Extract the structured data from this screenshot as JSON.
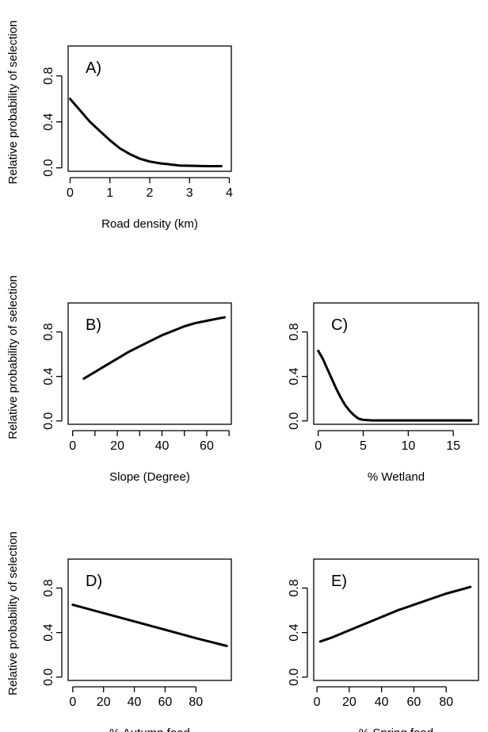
{
  "chart_data": [
    {
      "type": "line",
      "panel_label": "A)",
      "xlabel": "Road density (km)",
      "ylabel": "Relative probability of selection",
      "xlim": [
        -0.05,
        4.05
      ],
      "ylim": [
        -0.03,
        1.06
      ],
      "xticks": [
        0,
        1,
        2,
        3,
        4
      ],
      "yticks": [
        0.0,
        0.4,
        0.8
      ],
      "ytick_labels": [
        "0.0",
        "0.4",
        "0.8"
      ],
      "x": [
        0.0,
        0.25,
        0.5,
        0.75,
        1.0,
        1.25,
        1.5,
        1.75,
        2.0,
        2.25,
        2.5,
        2.75,
        3.0,
        3.25,
        3.5,
        3.8
      ],
      "y": [
        0.6,
        0.5,
        0.4,
        0.32,
        0.24,
        0.17,
        0.12,
        0.08,
        0.055,
        0.04,
        0.03,
        0.02,
        0.018,
        0.016,
        0.015,
        0.015
      ]
    },
    {
      "type": "line",
      "panel_label": "B)",
      "xlabel": "Slope (Degree)",
      "ylabel": "Relative probability of selection",
      "xlim": [
        -2,
        71
      ],
      "ylim": [
        -0.03,
        1.06
      ],
      "xticks": [
        0,
        10,
        20,
        30,
        40,
        50,
        60,
        70
      ],
      "xtick_labels": [
        "0",
        "",
        "20",
        "",
        "40",
        "",
        "60",
        ""
      ],
      "yticks": [
        0.0,
        0.4,
        0.8
      ],
      "ytick_labels": [
        "0.0",
        "0.4",
        "0.8"
      ],
      "x": [
        5,
        10,
        15,
        20,
        25,
        30,
        35,
        40,
        45,
        50,
        55,
        60,
        65,
        68
      ],
      "y": [
        0.38,
        0.44,
        0.5,
        0.56,
        0.62,
        0.67,
        0.72,
        0.77,
        0.81,
        0.85,
        0.88,
        0.9,
        0.92,
        0.93
      ]
    },
    {
      "type": "line",
      "panel_label": "C)",
      "xlabel": "% Wetland",
      "ylabel": "",
      "xlim": [
        -0.5,
        17.8
      ],
      "ylim": [
        -0.03,
        1.06
      ],
      "xticks": [
        0,
        5,
        10,
        15
      ],
      "yticks": [
        0.0,
        0.4,
        0.8
      ],
      "ytick_labels": [
        "0.0",
        "0.4",
        "0.8"
      ],
      "x": [
        0,
        0.5,
        1.0,
        1.5,
        2.0,
        2.5,
        3.0,
        3.5,
        4.0,
        4.5,
        5.0,
        6.0,
        8.0,
        10.0,
        12.0,
        14.0,
        17.0
      ],
      "y": [
        0.63,
        0.56,
        0.47,
        0.38,
        0.29,
        0.21,
        0.14,
        0.09,
        0.05,
        0.02,
        0.01,
        0.005,
        0.005,
        0.005,
        0.005,
        0.005,
        0.005
      ]
    },
    {
      "type": "line",
      "panel_label": "D)",
      "xlabel": "% Autumn food",
      "ylabel": "Relative probability of selection",
      "xlim": [
        -3,
        103
      ],
      "ylim": [
        -0.03,
        1.06
      ],
      "xticks": [
        0,
        20,
        40,
        60,
        80
      ],
      "yticks": [
        0.0,
        0.4,
        0.8
      ],
      "ytick_labels": [
        "0.0",
        "0.4",
        "0.8"
      ],
      "x": [
        0,
        20,
        40,
        60,
        80,
        100
      ],
      "y": [
        0.65,
        0.575,
        0.5,
        0.425,
        0.35,
        0.28
      ]
    },
    {
      "type": "line",
      "panel_label": "E)",
      "xlabel": "% Spring food",
      "ylabel": "",
      "xlim": [
        -2,
        100
      ],
      "ylim": [
        -0.03,
        1.06
      ],
      "xticks": [
        0,
        20,
        40,
        60,
        80
      ],
      "yticks": [
        0.0,
        0.4,
        0.8
      ],
      "ytick_labels": [
        "0.0",
        "0.4",
        "0.8"
      ],
      "x": [
        2,
        10,
        20,
        30,
        40,
        50,
        60,
        70,
        80,
        90,
        95
      ],
      "y": [
        0.32,
        0.36,
        0.42,
        0.48,
        0.54,
        0.6,
        0.65,
        0.7,
        0.75,
        0.79,
        0.81
      ]
    }
  ]
}
